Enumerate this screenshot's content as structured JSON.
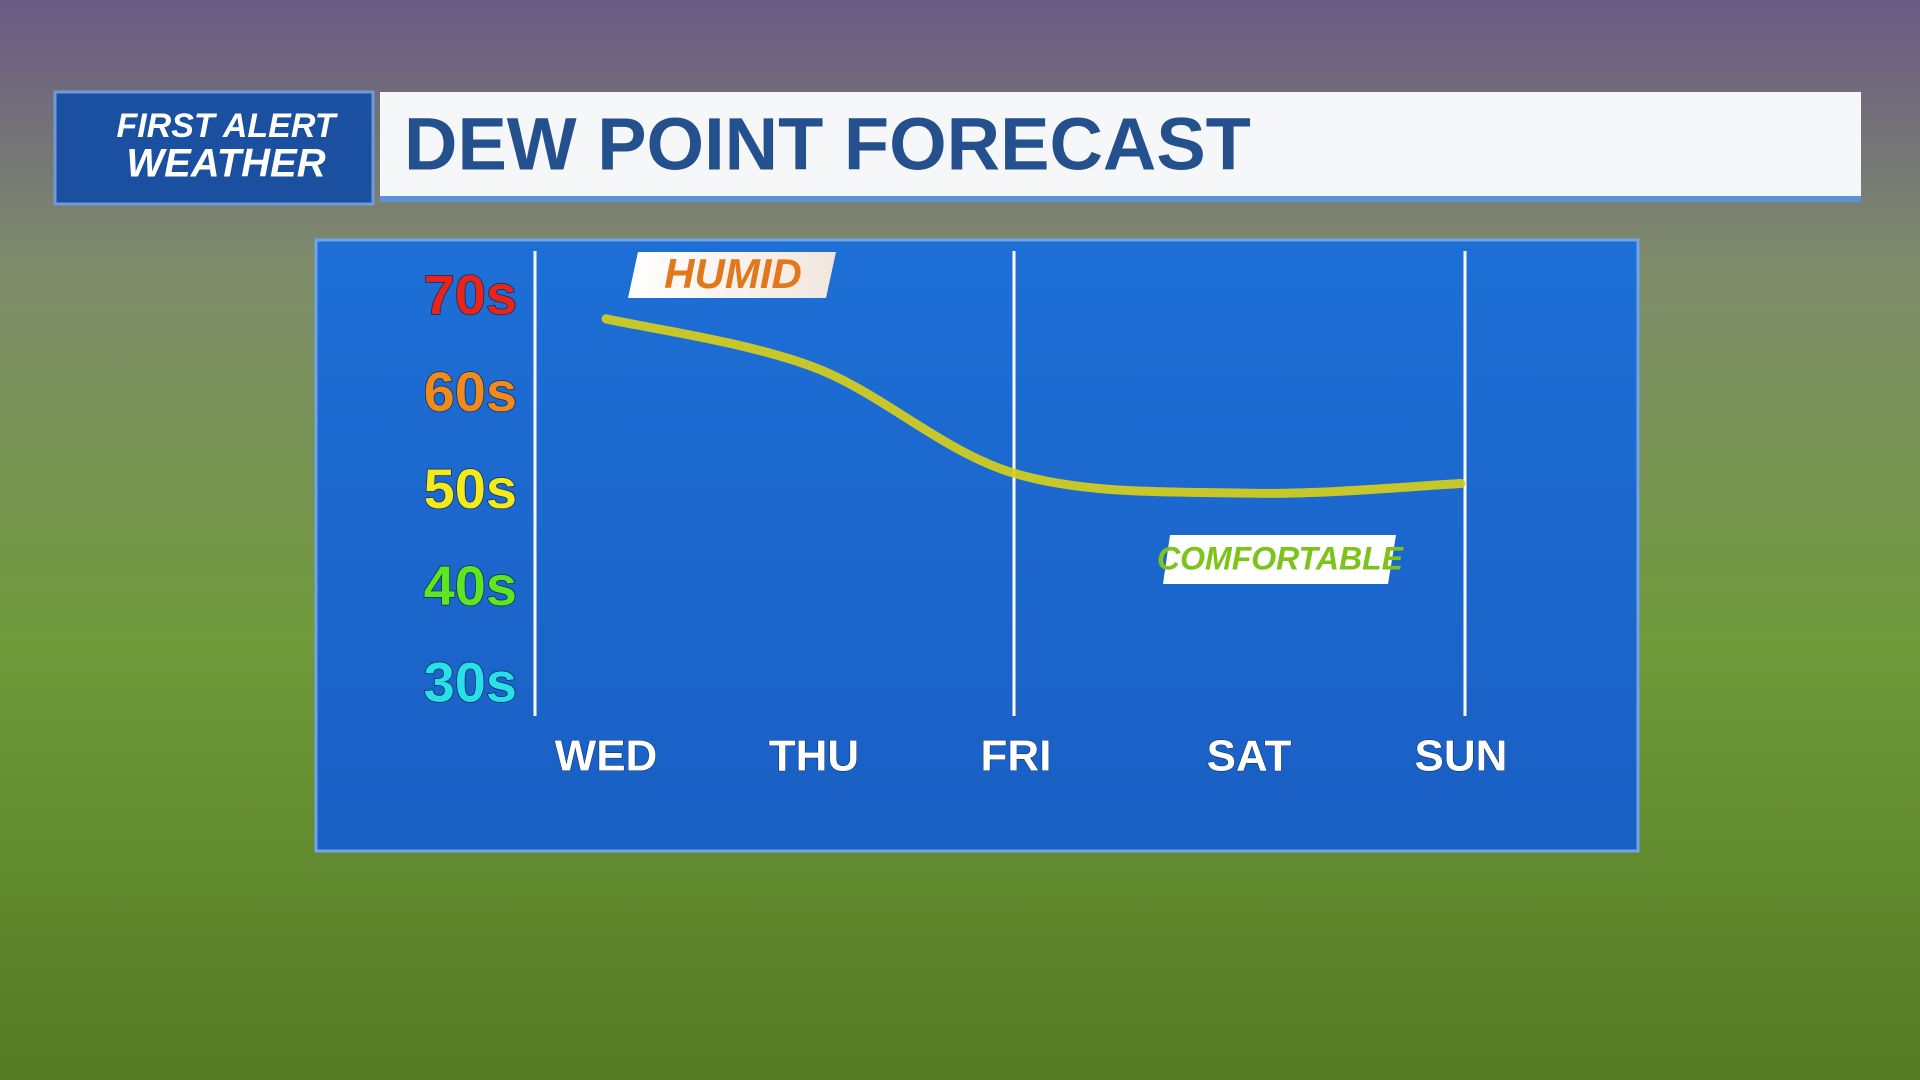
{
  "brand": {
    "line1": "FIRST ALERT",
    "line2": "WEATHER"
  },
  "chart_data": {
    "type": "line",
    "title": "DEW POINT FORECAST",
    "categories": [
      "WED",
      "THU",
      "FRI",
      "SAT",
      "SUN"
    ],
    "values": [
      68,
      63,
      52,
      50,
      51
    ],
    "color": "#d6cf1c",
    "ylim": [
      27,
      75
    ],
    "yticks": [
      {
        "value": 70,
        "label": "70s",
        "color": "#e8251c"
      },
      {
        "value": 60,
        "label": "60s",
        "color": "#f08a1c"
      },
      {
        "value": 50,
        "label": "50s",
        "color": "#f2ea1a"
      },
      {
        "value": 40,
        "label": "40s",
        "color": "#5ee61e"
      },
      {
        "value": 30,
        "label": "30s",
        "color": "#28e0e8"
      }
    ],
    "annotations": [
      {
        "text": "HUMID",
        "color": "#e2781e"
      },
      {
        "text": "COMFORTABLE",
        "color": "#7cc41a"
      }
    ]
  }
}
